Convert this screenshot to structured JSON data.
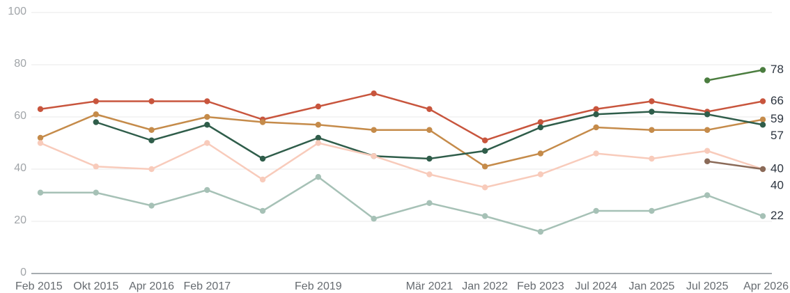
{
  "chart_data": {
    "type": "line",
    "categories": [
      "Feb 2015",
      "Okt 2015",
      "Apr 2016",
      "Feb 2017",
      null,
      "Feb 2019",
      null,
      "Mär 2021",
      "Jan 2022",
      "Feb 2023",
      "Jul 2024",
      "Jan 2025",
      "Jul 2025",
      "Apr 2026"
    ],
    "series": [
      {
        "color": "#c8553d",
        "values": [
          63,
          66,
          66,
          66,
          59,
          64,
          69,
          63,
          51,
          58,
          63,
          66,
          62,
          66
        ]
      },
      {
        "color": "#c58b4a",
        "values": [
          52,
          61,
          55,
          60,
          58,
          57,
          55,
          55,
          41,
          46,
          56,
          55,
          55,
          59
        ]
      },
      {
        "color": "#2f5d4a",
        "values": [
          null,
          58,
          51,
          57,
          44,
          52,
          45,
          44,
          47,
          56,
          61,
          62,
          61,
          57
        ]
      },
      {
        "color": "#f8cbbb",
        "values": [
          50,
          41,
          40,
          50,
          36,
          50,
          45,
          38,
          33,
          38,
          46,
          44,
          47,
          40
        ]
      },
      {
        "color": "#a6c1b6",
        "values": [
          31,
          31,
          26,
          32,
          24,
          37,
          21,
          27,
          22,
          16,
          24,
          24,
          30,
          22
        ]
      },
      {
        "color": "#4b7d3f",
        "values": [
          null,
          null,
          null,
          null,
          null,
          null,
          null,
          null,
          null,
          null,
          null,
          null,
          74,
          78
        ]
      },
      {
        "color": "#8a6a58",
        "values": [
          null,
          null,
          null,
          null,
          null,
          null,
          null,
          null,
          null,
          null,
          null,
          null,
          43,
          40
        ]
      }
    ],
    "ylim": [
      0,
      100
    ],
    "yticks": [
      0,
      20,
      40,
      60,
      80,
      100
    ],
    "grid": true,
    "end_labels": true
  }
}
